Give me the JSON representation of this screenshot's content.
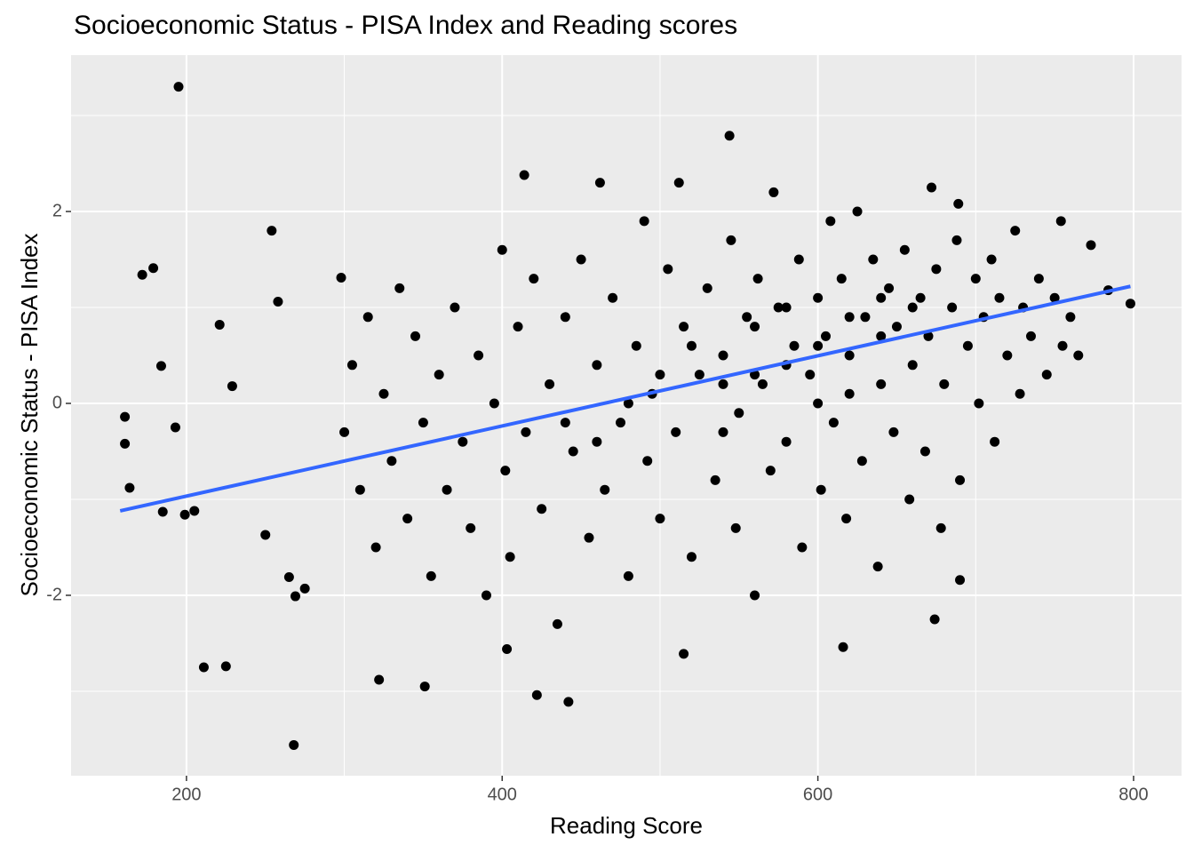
{
  "chart_data": {
    "type": "scatter",
    "title": "Socioeconomic Status - PISA Index and Reading scores",
    "x_label": "Reading Score",
    "y_label": "Socioeconomic Status - PISA Index",
    "xlim": [
      126.9,
      830.4
    ],
    "ylim": [
      -3.88,
      3.63
    ],
    "xticks": [
      200,
      400,
      600,
      800
    ],
    "yticks": [
      -2,
      0,
      2
    ],
    "xminor": [
      300,
      500,
      700
    ],
    "yminor": [
      -3,
      -1,
      1,
      3
    ],
    "grid": true,
    "color": "#000000",
    "x": [
      195,
      544,
      414,
      254,
      172,
      179,
      161,
      161,
      164,
      184,
      193,
      211,
      225,
      268,
      322,
      351,
      422,
      442,
      798,
      784,
      773,
      754,
      672,
      689,
      403,
      515,
      616,
      674,
      690,
      221,
      258,
      298,
      229,
      205,
      185,
      199,
      250,
      265,
      275,
      269,
      300,
      305,
      310,
      315,
      320,
      325,
      330,
      335,
      340,
      345,
      350,
      355,
      360,
      365,
      370,
      375,
      380,
      385,
      390,
      395,
      400,
      402,
      405,
      410,
      415,
      420,
      425,
      430,
      435,
      440,
      445,
      450,
      455,
      460,
      462,
      465,
      470,
      475,
      480,
      485,
      490,
      492,
      495,
      500,
      505,
      510,
      512,
      515,
      520,
      525,
      530,
      535,
      540,
      545,
      548,
      550,
      555,
      560,
      562,
      565,
      570,
      572,
      575,
      580,
      585,
      588,
      590,
      595,
      600,
      602,
      605,
      608,
      610,
      615,
      618,
      620,
      625,
      628,
      630,
      635,
      638,
      640,
      645,
      648,
      650,
      655,
      658,
      660,
      665,
      668,
      670,
      675,
      678,
      680,
      685,
      688,
      690,
      695,
      700,
      702,
      705,
      710,
      712,
      715,
      720,
      725,
      728,
      730,
      735,
      740,
      745,
      750,
      755,
      760,
      765,
      520,
      540,
      560,
      580,
      600,
      620,
      640,
      660,
      580,
      600,
      560,
      540,
      620,
      640,
      500,
      480,
      460,
      440
    ],
    "y": [
      3.3,
      2.79,
      2.38,
      1.8,
      1.34,
      1.41,
      -0.14,
      -0.42,
      -0.88,
      0.39,
      -0.25,
      -2.75,
      -2.74,
      -3.56,
      -2.88,
      -2.95,
      -3.04,
      -3.11,
      1.04,
      1.18,
      1.65,
      1.9,
      2.25,
      2.08,
      -2.56,
      -2.61,
      -2.54,
      -2.25,
      -1.84,
      0.82,
      1.06,
      1.31,
      0.18,
      -1.12,
      -1.13,
      -1.16,
      -1.37,
      -1.81,
      -1.93,
      -2.01,
      -0.3,
      0.4,
      -0.9,
      0.9,
      -1.5,
      0.1,
      -0.6,
      1.2,
      -1.2,
      0.7,
      -0.2,
      -1.8,
      0.3,
      -0.9,
      1.0,
      -0.4,
      -1.3,
      0.5,
      -2.0,
      0.0,
      1.6,
      -0.7,
      -1.6,
      0.8,
      -0.3,
      1.3,
      -1.1,
      0.2,
      -2.3,
      0.9,
      -0.5,
      1.5,
      -1.4,
      0.4,
      2.3,
      -0.9,
      1.1,
      -0.2,
      -1.8,
      0.6,
      1.9,
      -0.6,
      0.1,
      -1.2,
      1.4,
      -0.3,
      2.3,
      0.8,
      -1.6,
      0.3,
      1.2,
      -0.8,
      0.5,
      1.7,
      -1.3,
      -0.1,
      0.9,
      -2.0,
      1.3,
      0.2,
      -0.7,
      2.2,
      1.0,
      -0.4,
      0.6,
      1.5,
      -1.5,
      0.3,
      1.1,
      -0.9,
      0.7,
      1.9,
      -0.2,
      1.3,
      -1.2,
      0.5,
      2.0,
      -0.6,
      0.9,
      1.5,
      -1.7,
      0.2,
      1.2,
      -0.3,
      0.8,
      1.6,
      -1.0,
      0.4,
      1.1,
      -0.5,
      0.7,
      1.4,
      -1.3,
      0.2,
      1.0,
      1.7,
      -0.8,
      0.6,
      1.3,
      0.0,
      0.9,
      1.5,
      -0.4,
      1.1,
      0.5,
      1.8,
      0.1,
      1.0,
      0.7,
      1.3,
      0.3,
      1.1,
      0.6,
      0.9,
      0.5,
      0.6,
      0.2,
      0.8,
      0.4,
      0.6,
      0.9,
      0.7,
      1.0,
      1.0,
      0.0,
      0.3,
      -0.3,
      0.1,
      1.1,
      0.3,
      0.0,
      -0.4,
      -0.2
    ],
    "fit_line": {
      "color": "#3366ff",
      "x": [
        158,
        798
      ],
      "y": [
        -1.12,
        1.22
      ]
    }
  }
}
